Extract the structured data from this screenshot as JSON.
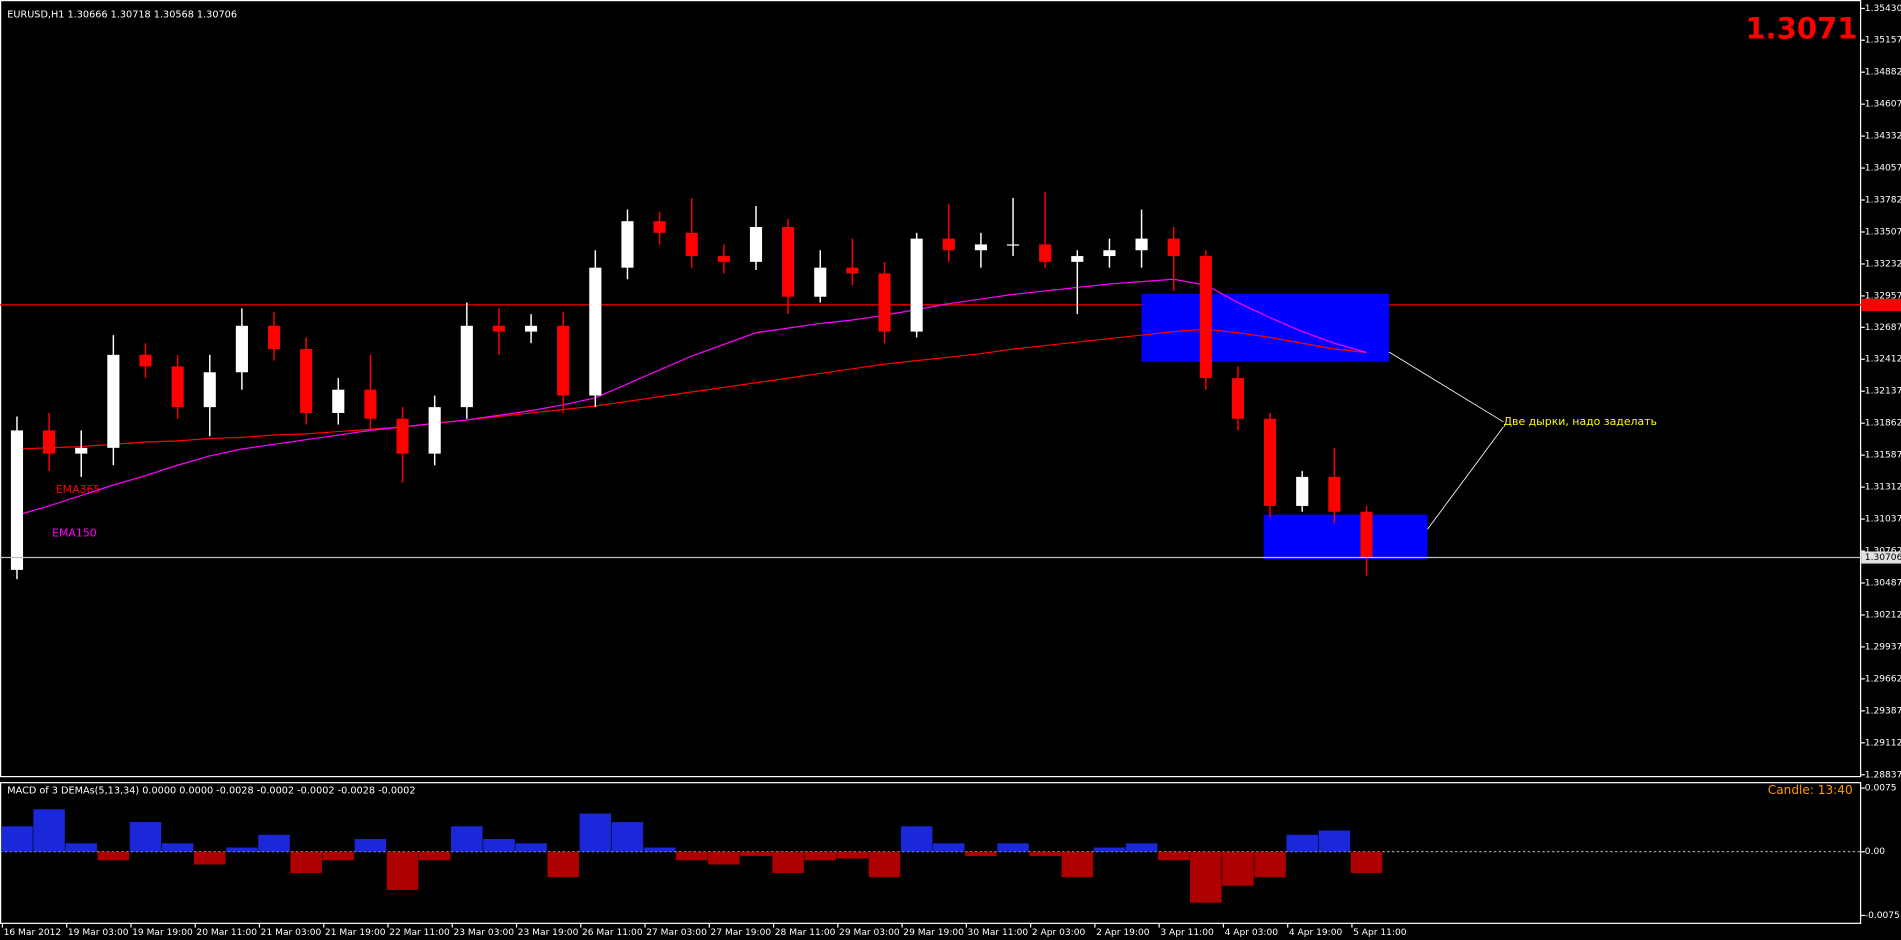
{
  "chart_data": [
    {
      "type": "candlestick",
      "title": "EURUSD,H1  1.30666 1.30718 1.30568 1.30706",
      "price_display": "1.3071",
      "categories": [
        "16 Mar 2012",
        null,
        "19 Mar 03:00",
        null,
        "19 Mar 19:00",
        null,
        "20 Mar 11:00",
        null,
        "21 Mar 03:00",
        null,
        "21 Mar 19:00",
        null,
        "22 Mar 11:00",
        null,
        "23 Mar 03:00",
        null,
        "23 Mar 19:00",
        null,
        "26 Mar 11:00",
        null,
        "27 Mar 03:00",
        null,
        "27 Mar 19:00",
        null,
        "28 Mar 11:00",
        null,
        "29 Mar 03:00",
        null,
        "29 Mar 19:00",
        null,
        "30 Mar 11:00",
        null,
        "2 Apr 03:00",
        null,
        "2 Apr 19:00",
        null,
        "3 Apr 11:00",
        null,
        "4 Apr 03:00",
        null,
        "4 Apr 19:00",
        null,
        "5 Apr 11:00"
      ],
      "open": [
        1.306,
        1.318,
        1.316,
        1.3165,
        1.3245,
        1.3235,
        1.32,
        1.323,
        1.327,
        1.325,
        1.3195,
        1.3215,
        1.319,
        1.316,
        1.32,
        1.327,
        1.3265,
        1.327,
        1.321,
        1.332,
        1.336,
        1.335,
        1.333,
        1.3325,
        1.3355,
        1.3295,
        1.332,
        1.3315,
        1.3265,
        1.3345,
        1.3335,
        1.334,
        1.334,
        1.3325,
        1.333,
        1.3335,
        1.3345,
        1.333,
        1.3225,
        1.319,
        1.3115,
        1.314,
        1.311
      ],
      "high": [
        1.3192,
        1.3195,
        1.318,
        1.3262,
        1.3255,
        1.3245,
        1.3245,
        1.3285,
        1.3282,
        1.326,
        1.3225,
        1.3245,
        1.32,
        1.321,
        1.329,
        1.3285,
        1.328,
        1.3282,
        1.3335,
        1.337,
        1.3368,
        1.338,
        1.334,
        1.3373,
        1.3362,
        1.3335,
        1.3345,
        1.3325,
        1.335,
        1.3375,
        1.335,
        1.338,
        1.3385,
        1.3335,
        1.3345,
        1.337,
        1.3355,
        1.3335,
        1.3235,
        1.3195,
        1.3145,
        1.3165,
        1.3115
      ],
      "low": [
        1.3052,
        1.3145,
        1.314,
        1.315,
        1.3225,
        1.319,
        1.3175,
        1.3215,
        1.324,
        1.3185,
        1.3185,
        1.318,
        1.3135,
        1.315,
        1.319,
        1.3245,
        1.3255,
        1.3195,
        1.32,
        1.331,
        1.334,
        1.332,
        1.3315,
        1.3318,
        1.328,
        1.329,
        1.3305,
        1.3255,
        1.326,
        1.3325,
        1.332,
        1.333,
        1.332,
        1.328,
        1.332,
        1.332,
        1.33,
        1.3215,
        1.318,
        1.3105,
        1.311,
        1.31,
        1.3055
      ],
      "close": [
        1.318,
        1.316,
        1.3165,
        1.3245,
        1.3235,
        1.32,
        1.323,
        1.327,
        1.325,
        1.3195,
        1.3215,
        1.319,
        1.316,
        1.32,
        1.327,
        1.3265,
        1.327,
        1.321,
        1.332,
        1.336,
        1.335,
        1.333,
        1.3325,
        1.3355,
        1.3295,
        1.332,
        1.3315,
        1.3265,
        1.3345,
        1.3335,
        1.334,
        1.334,
        1.3325,
        1.333,
        1.3335,
        1.3345,
        1.333,
        1.3225,
        1.319,
        1.3115,
        1.314,
        1.311,
        1.30706
      ],
      "up_color": "#ffffff",
      "down_color": "#ff0000",
      "series": [
        {
          "name": "EMA365",
          "color": "#ff0000",
          "values": [
            1.3164,
            1.3165,
            1.3166,
            1.3168,
            1.317,
            1.3171,
            1.3173,
            1.3174,
            1.3176,
            1.3177,
            1.3179,
            1.3181,
            1.3183,
            1.3186,
            1.3189,
            1.3192,
            1.3195,
            1.3198,
            1.3201,
            1.3205,
            1.3209,
            1.3213,
            1.3217,
            1.3221,
            1.3225,
            1.3229,
            1.3233,
            1.3237,
            1.324,
            1.3243,
            1.3246,
            1.325,
            1.3253,
            1.3256,
            1.3259,
            1.3262,
            1.3265,
            1.3267,
            1.3264,
            1.326,
            1.3255,
            1.325,
            1.3247
          ]
        },
        {
          "name": "EMA150",
          "color": "#ff00ff",
          "values": [
            1.3107,
            1.3115,
            1.3124,
            1.3133,
            1.3141,
            1.315,
            1.3158,
            1.3164,
            1.3168,
            1.3172,
            1.3176,
            1.318,
            1.3183,
            1.3186,
            1.3189,
            1.3193,
            1.3197,
            1.3202,
            1.3208,
            1.322,
            1.3232,
            1.3244,
            1.3254,
            1.3264,
            1.3268,
            1.3272,
            1.3275,
            1.3279,
            1.3284,
            1.3289,
            1.3293,
            1.3297,
            1.33,
            1.3303,
            1.3306,
            1.3308,
            1.331,
            1.3305,
            1.329,
            1.3277,
            1.3265,
            1.3255,
            1.3247
          ]
        }
      ],
      "ylim": [
        1.28816,
        1.35503
      ],
      "yticks": [
        {
          "value": 1.3543,
          "label": "1.35430"
        },
        1.35157,
        1.34882,
        1.34607,
        1.34332,
        1.34057,
        1.33782,
        1.33507,
        1.33232,
        1.32957,
        1.32687,
        1.32412,
        1.32137,
        1.31862,
        1.31587,
        1.31312,
        1.31037,
        1.30762,
        1.30487,
        1.30212,
        1.29937,
        1.29662,
        1.29387,
        1.29112,
        1.28837
      ],
      "hline": {
        "value": 1.3288,
        "color": "#ff0000"
      },
      "current_price": 1.30706,
      "zones": [
        {
          "x": [
            35.0,
            42.7
          ],
          "price": [
            1.32976,
            1.32391
          ],
          "color": "#0000ff"
        },
        {
          "x": [
            38.8,
            43.9
          ],
          "price": [
            1.31075,
            1.30689
          ],
          "color": "#0000ff"
        }
      ],
      "annotation": "Две дырки, надо заделать"
    },
    {
      "type": "bar",
      "title": "MACD of 3 DEMAs(5,13,34) 0.0000 0.0000 -0.0028 -0.0002 -0.0002 -0.0028 -0.0002",
      "timer": "Candle:  13:40",
      "values": [
        0.003,
        0.005,
        0.001,
        -0.001,
        0.0035,
        0.001,
        -0.0015,
        0.0005,
        0.002,
        -0.0025,
        -0.001,
        0.0015,
        -0.0045,
        -0.001,
        0.003,
        0.0015,
        0.001,
        -0.003,
        0.0045,
        0.0035,
        0.0005,
        -0.001,
        -0.0015,
        -0.0005,
        -0.0025,
        -0.001,
        -0.0008,
        -0.003,
        0.003,
        0.001,
        -0.0005,
        0.001,
        -0.0005,
        -0.003,
        0.0005,
        0.001,
        -0.001,
        -0.006,
        -0.004,
        -0.003,
        0.002,
        0.0025,
        -0.0025
      ],
      "positive_color": "#1f2fff",
      "negative_color": "#cc0000",
      "ylim": [
        -0.0085,
        0.00821
      ],
      "yticks": [
        0.0075,
        {
          "value": 0,
          "label": "0.00"
        },
        -0.0075
      ]
    }
  ]
}
